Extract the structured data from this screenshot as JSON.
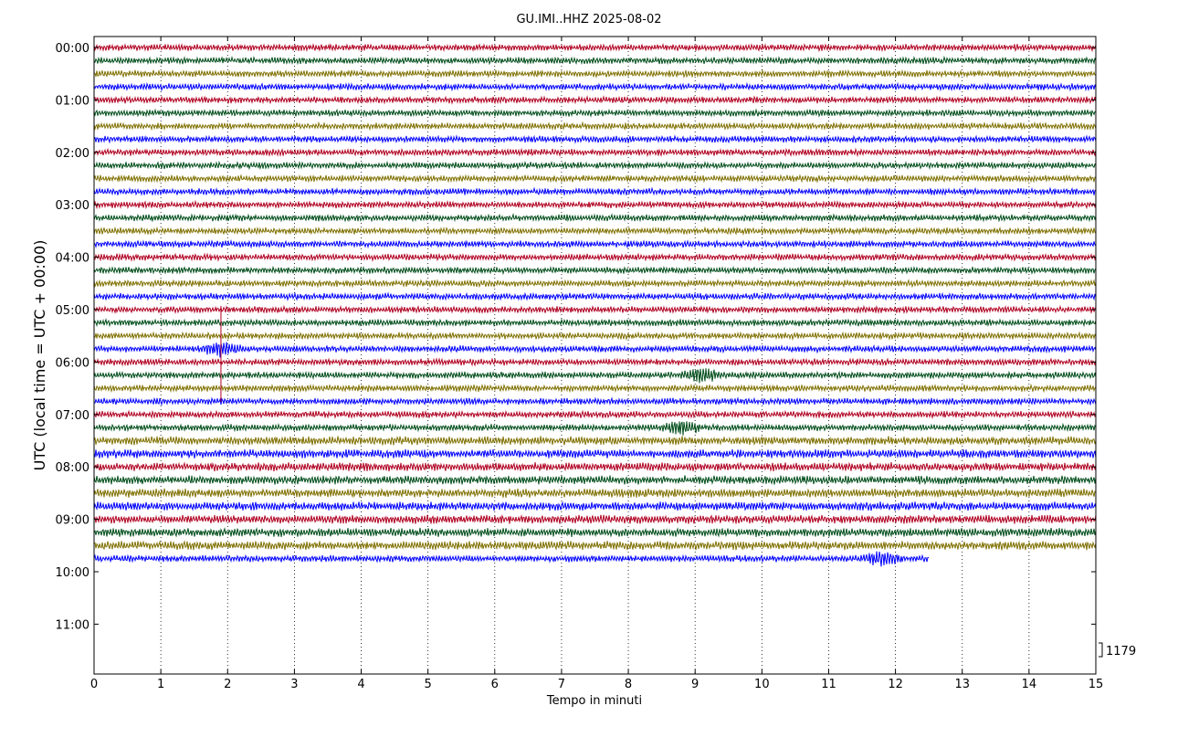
{
  "chart_data": {
    "type": "line",
    "title": "GU.IMI..HHZ 2025-08-02",
    "xlabel": "Tempo in minuti",
    "ylabel": "UTC (local time = UTC + 00:00)",
    "xlim": [
      0,
      15
    ],
    "x_ticks": [
      "0",
      "1",
      "2",
      "3",
      "4",
      "5",
      "6",
      "7",
      "8",
      "9",
      "10",
      "11",
      "12",
      "13",
      "14",
      "15"
    ],
    "y_ticks": [
      "00:00",
      "01:00",
      "02:00",
      "03:00",
      "04:00",
      "05:00",
      "06:00",
      "07:00",
      "08:00",
      "09:00",
      "10:00",
      "11:00"
    ],
    "grid": "vertical dotted",
    "trace_colors": [
      "#b00020",
      "#004d1a",
      "#7f7000",
      "#0000ff"
    ],
    "traces_count": 40,
    "last_trace_end_minute": 12.5,
    "scale_label": "1179",
    "events": [
      {
        "trace_time": "05:45",
        "minute": 1.9,
        "label": ""
      },
      {
        "trace_time": "06:15",
        "minute": 9.1,
        "label": ""
      },
      {
        "trace_time": "07:15",
        "minute": 8.8,
        "label": ""
      },
      {
        "trace_time": "09:45",
        "minute": 11.8,
        "label": ""
      }
    ]
  }
}
